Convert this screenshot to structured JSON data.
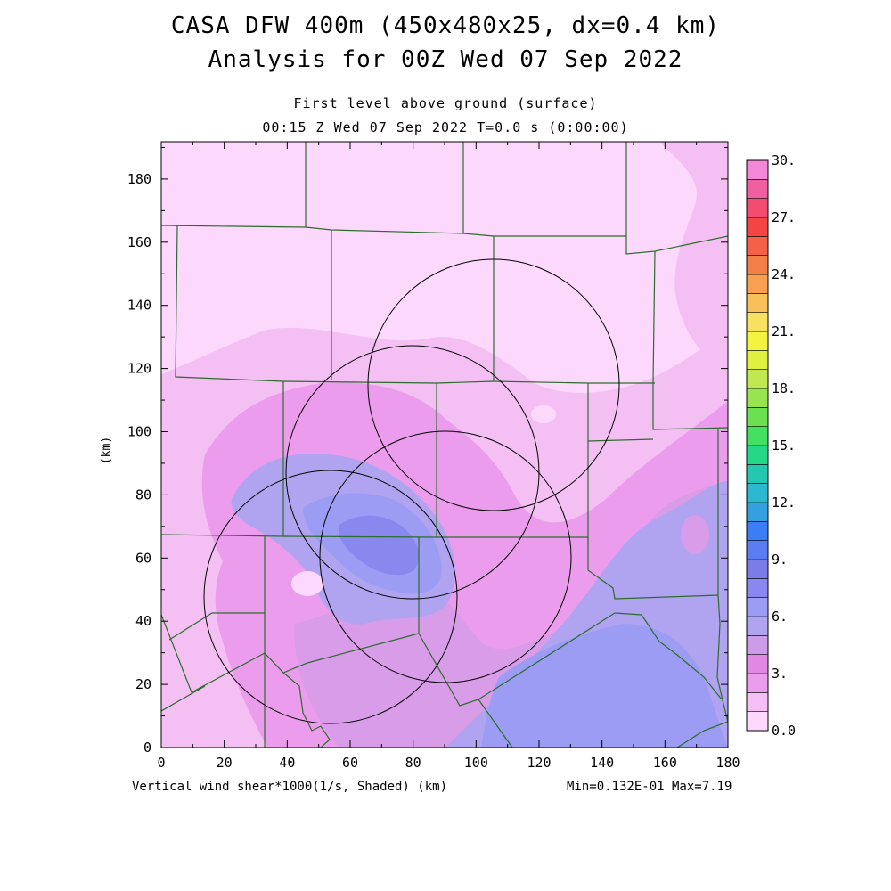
{
  "title_line1": "CASA DFW 400m (450x480x25, dx=0.4 km)",
  "title_line2": "Analysis for 00Z Wed 07 Sep 2022",
  "subtitle_level": "First level above ground (surface)",
  "subtitle_time": "00:15 Z Wed 07 Sep 2022    T=0.0 s (0:00:00)",
  "footer_left": "Vertical wind shear*1000(1/s, Shaded)  (km)",
  "footer_right": "Min=0.132E-01 Max=7.19",
  "y_axis_unit": "(km)",
  "x_ticks": [
    "0",
    "20",
    "40",
    "60",
    "80",
    "100",
    "120",
    "140",
    "160",
    "180"
  ],
  "y_ticks": [
    "0",
    "20",
    "40",
    "60",
    "80",
    "100",
    "120",
    "140",
    "160",
    "180"
  ],
  "colorbar": {
    "labels": [
      "0.0",
      "3.",
      "6.",
      "9.",
      "12.",
      "15.",
      "18.",
      "21.",
      "24.",
      "27.",
      "30."
    ],
    "colors": [
      "#fcd8fc",
      "#f4c0f4",
      "#ec9cec",
      "#e088e4",
      "#cc9ce8",
      "#b0a4f0",
      "#9c9cf4",
      "#8888f0",
      "#7c7ce8",
      "#5c7cf4",
      "#3c7cf4",
      "#34a0e0",
      "#2cb8d0",
      "#24c8b0",
      "#24d888",
      "#44e060",
      "#6ce050",
      "#98e450",
      "#c0e850",
      "#e0f040",
      "#f4f440",
      "#f8e060",
      "#f8c058",
      "#f8a050",
      "#f48048",
      "#f46048",
      "#f44444",
      "#f44c70",
      "#f060a0",
      "#f488d8"
    ]
  },
  "map_colors": {
    "lightest": "#fcd8fc",
    "light": "#f4c0f4",
    "pink": "#ec9cec",
    "mauve": "#d89ce8",
    "lavender": "#b0a4f0",
    "violet": "#9c9cf4",
    "blue": "#8888ee",
    "county_lines": "#2e6b2e"
  }
}
